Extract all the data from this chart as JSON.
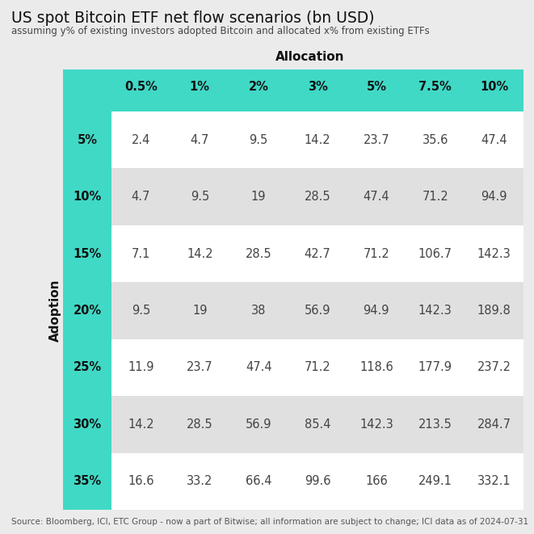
{
  "title": "US spot Bitcoin ETF net flow scenarios (bn USD)",
  "subtitle": "assuming y% of existing investors adopted Bitcoin and allocated x% from existing ETFs",
  "source": "Source: Bloomberg, ICI, ETC Group - now a part of Bitwise; all information are subject to change; ICI data as of 2024-07-31",
  "allocation_label": "Allocation",
  "adoption_label": "Adoption",
  "col_headers": [
    "0.5%",
    "1%",
    "2%",
    "3%",
    "5%",
    "7.5%",
    "10%"
  ],
  "row_headers": [
    "5%",
    "10%",
    "15%",
    "20%",
    "25%",
    "30%",
    "35%"
  ],
  "values": [
    [
      2.4,
      4.7,
      9.5,
      14.2,
      23.7,
      35.6,
      47.4
    ],
    [
      4.7,
      9.5,
      19,
      28.5,
      47.4,
      71.2,
      94.9
    ],
    [
      7.1,
      14.2,
      28.5,
      42.7,
      71.2,
      106.7,
      142.3
    ],
    [
      9.5,
      19,
      38,
      56.9,
      94.9,
      142.3,
      189.8
    ],
    [
      11.9,
      23.7,
      47.4,
      71.2,
      118.6,
      177.9,
      237.2
    ],
    [
      14.2,
      28.5,
      56.9,
      85.4,
      142.3,
      213.5,
      284.7
    ],
    [
      16.6,
      33.2,
      66.4,
      99.6,
      166,
      249.1,
      332.1
    ]
  ],
  "teal_color": "#40D9C6",
  "outer_bg": "#EBEBEB",
  "white_cell_bg": "#FFFFFF",
  "alt_cell_bg": "#E0E0E0",
  "cell_text_color": "#444444",
  "title_fontsize": 13.5,
  "subtitle_fontsize": 8.5,
  "source_fontsize": 7.5,
  "header_fontsize": 10.5,
  "cell_fontsize": 10.5
}
